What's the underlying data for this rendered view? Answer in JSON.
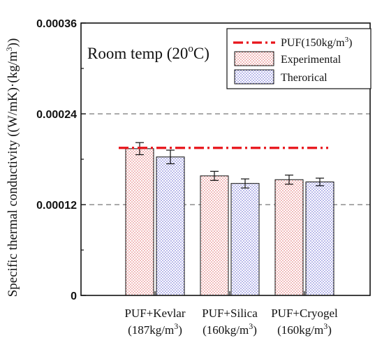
{
  "chart_data": {
    "type": "bar",
    "categories": [
      [
        "PUF+Kevlar",
        "(187kg/m",
        "3",
        ")"
      ],
      [
        "PUF+Silica",
        "(160kg/m",
        "3",
        ")"
      ],
      [
        "PUF+Cryogel",
        "(160kg/m",
        "3",
        ")"
      ]
    ],
    "series": [
      {
        "name": "Experimental",
        "values": [
          0.000194,
          0.000158,
          0.000153
        ],
        "errors": [
          8e-06,
          6e-06,
          6e-06
        ],
        "color": "#e06060",
        "pattern": "red-dots"
      },
      {
        "name": "Therorical",
        "values": [
          0.000183,
          0.000148,
          0.00015
        ],
        "errors": [
          9e-06,
          6e-06,
          5e-06
        ],
        "color": "#6a6ad8",
        "pattern": "blue-dots"
      }
    ],
    "reference_line": {
      "name": "PUF(150kg/m",
      "name_sup": "3",
      "name_end": ")",
      "value": 0.000195,
      "color": "#e8141a",
      "style": "dash-dot"
    },
    "annotation": {
      "text": "Room temp (20",
      "sup": "o",
      "end": "C)"
    },
    "ylabel": {
      "text": "Specific thermal conductivity ((W/mK)·(kg/m",
      "sup": "3",
      "end": "))"
    },
    "xlabel": "",
    "ylim": [
      0,
      0.00036
    ],
    "yticks": [
      0,
      0.00012,
      0.00024,
      0.00036
    ],
    "ytick_labels": [
      "0",
      "0.00012",
      "0.00024",
      "0.00036"
    ],
    "grid": "dashed horizontal at 0.00012 and 0.00024",
    "legend_position": "top-right"
  }
}
